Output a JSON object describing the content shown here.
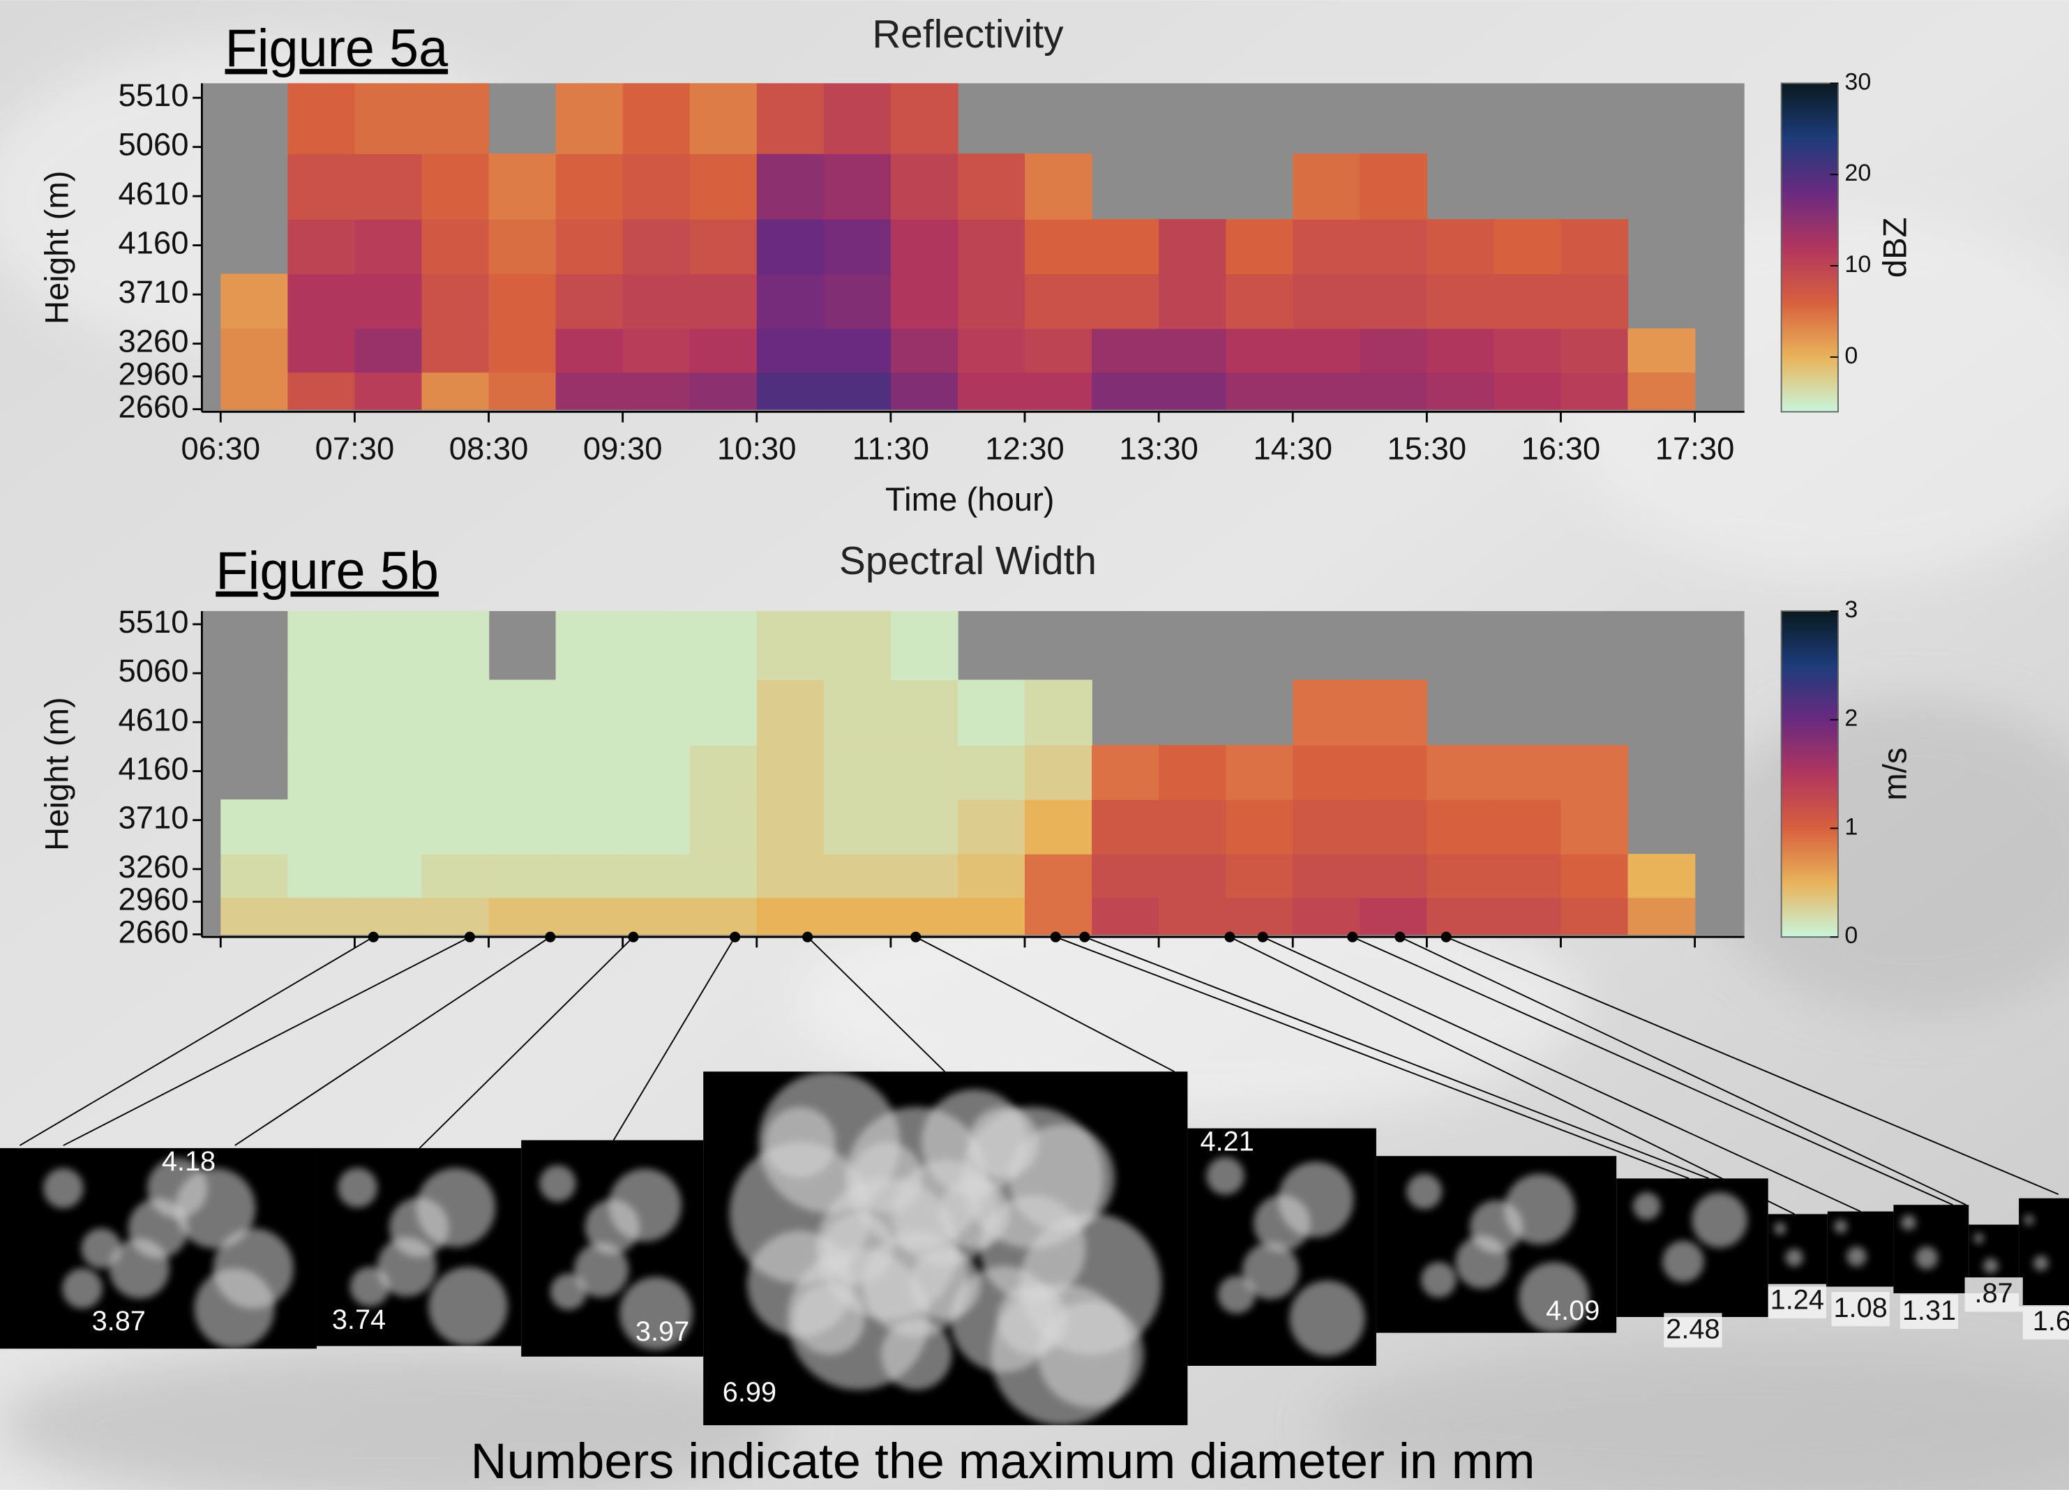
{
  "slide": {
    "figure_labels": [
      "Figure 5a",
      "Figure 5b"
    ],
    "caption": "Numbers indicate the maximum diameter in mm",
    "diameters": [
      "3.87",
      "4.18",
      "3.74",
      "3.97",
      "6.99",
      "4.21",
      "4.09",
      "2.48",
      "1.24",
      "1.08",
      "1.31",
      ".87",
      "1.6"
    ]
  },
  "chart_data": [
    {
      "type": "heatmap",
      "title": "Reflectivity",
      "xlabel": "Time (hour)",
      "ylabel": "Height (m)",
      "colorbar_label": "dBZ",
      "xlim": [
        6.36,
        17.87
      ],
      "ylim": [
        2636,
        5643
      ],
      "xticks": [
        {
          "value": 6.5,
          "label": "06:30"
        },
        {
          "value": 7.5,
          "label": "07:30"
        },
        {
          "value": 8.5,
          "label": "08:30"
        },
        {
          "value": 9.5,
          "label": "09:30"
        },
        {
          "value": 10.5,
          "label": "10:30"
        },
        {
          "value": 11.5,
          "label": "11:30"
        },
        {
          "value": 12.5,
          "label": "12:30"
        },
        {
          "value": 13.5,
          "label": "13:30"
        },
        {
          "value": 14.5,
          "label": "14:30"
        },
        {
          "value": 15.5,
          "label": "15:30"
        },
        {
          "value": 16.5,
          "label": "16:30"
        },
        {
          "value": 17.5,
          "label": "17:30"
        }
      ],
      "yticks": [
        2660,
        2960,
        3260,
        3710,
        4160,
        4610,
        5060,
        5510
      ],
      "xbins": [
        6.5,
        7,
        7.5,
        8,
        8.5,
        9,
        9.5,
        10,
        10.5,
        11,
        11.5,
        12,
        12.5,
        13,
        13.5,
        14,
        14.5,
        15,
        15.5,
        16,
        16.5,
        17,
        17.5
      ],
      "ybins": [
        2660,
        3000,
        3400,
        3900,
        4400,
        5000,
        5643
      ],
      "z": [
        [
          3,
          8,
          11,
          3,
          5,
          14,
          14,
          15,
          20,
          20,
          16,
          12,
          12,
          16,
          16,
          14,
          14,
          14,
          13,
          12,
          11,
          4
        ],
        [
          3,
          12,
          14,
          8,
          6,
          12,
          11,
          12,
          18,
          18,
          14,
          11,
          10,
          14,
          14,
          12,
          12,
          13,
          12,
          11,
          10,
          2
        ],
        [
          2,
          12,
          12,
          8,
          6,
          9,
          10,
          10,
          17,
          16,
          12,
          10,
          8,
          8,
          10,
          8,
          9,
          9,
          8,
          8,
          8,
          null
        ],
        [
          null,
          10,
          11,
          7,
          5,
          7,
          9,
          8,
          18,
          17,
          12,
          10,
          6,
          6,
          10,
          6,
          8,
          8,
          7,
          6,
          7,
          null
        ],
        [
          null,
          8,
          8,
          6,
          4,
          6,
          7,
          6,
          15,
          14,
          10,
          8,
          4,
          null,
          null,
          null,
          5,
          6,
          null,
          null,
          null,
          null
        ],
        [
          null,
          6,
          5,
          5,
          null,
          4,
          6,
          4,
          8,
          10,
          8,
          null,
          null,
          null,
          null,
          null,
          null,
          null,
          null,
          null,
          null,
          null
        ]
      ],
      "clim": [
        -6,
        30
      ],
      "cticks": [
        0,
        10,
        20,
        30
      ],
      "colormap": [
        "#c8f5dc",
        "#e9b35a",
        "#d7603e",
        "#b0365e",
        "#6a2a80",
        "#1c3c7a",
        "#0a1a20"
      ],
      "missing_color": "#8c8c8c"
    },
    {
      "type": "heatmap",
      "title": "Spectral Width",
      "ylabel": "Height (m)",
      "colorbar_label": "m/s",
      "xlim": [
        6.36,
        17.87
      ],
      "ylim": [
        2636,
        5631
      ],
      "xticks": [
        6.5,
        7.5,
        8.5,
        9.5,
        10.5,
        11.5,
        12.5,
        13.5,
        14.5,
        15.5,
        16.5,
        17.5
      ],
      "yticks": [
        2660,
        2960,
        3260,
        3710,
        4160,
        4610,
        5060,
        5510
      ],
      "xbins": [
        6.5,
        7,
        7.5,
        8,
        8.5,
        9,
        9.5,
        10,
        10.5,
        11,
        11.5,
        12,
        12.5,
        13,
        13.5,
        14,
        14.5,
        15,
        15.5,
        16,
        16.5,
        17,
        17.5
      ],
      "ybins": [
        2660,
        3000,
        3400,
        3900,
        4400,
        5000,
        5631
      ],
      "z": [
        [
          0.3,
          0.3,
          0.3,
          0.3,
          0.4,
          0.4,
          0.4,
          0.4,
          0.5,
          0.5,
          0.5,
          0.5,
          0.9,
          1.3,
          1.2,
          1.2,
          1.3,
          1.4,
          1.2,
          1.2,
          1.1,
          0.7
        ],
        [
          0.2,
          0.1,
          0.1,
          0.2,
          0.2,
          0.2,
          0.2,
          0.2,
          0.3,
          0.3,
          0.3,
          0.4,
          0.9,
          1.2,
          1.2,
          1.1,
          1.2,
          1.2,
          1.1,
          1.1,
          1.0,
          0.5
        ],
        [
          0.1,
          0.1,
          0.1,
          0.1,
          0.1,
          0.1,
          0.1,
          0.2,
          0.3,
          0.2,
          0.2,
          0.3,
          0.5,
          1.1,
          1.1,
          1.0,
          1.1,
          1.1,
          1.0,
          1.0,
          0.9,
          null
        ],
        [
          null,
          0.1,
          0.1,
          0.1,
          0.1,
          0.1,
          0.1,
          0.2,
          0.3,
          0.2,
          0.2,
          0.2,
          0.3,
          0.9,
          1.0,
          0.9,
          1.0,
          1.0,
          0.9,
          0.9,
          0.9,
          null
        ],
        [
          null,
          0.1,
          0.1,
          0.1,
          0.1,
          0.1,
          0.1,
          0.1,
          0.3,
          0.2,
          0.2,
          0.1,
          0.2,
          null,
          null,
          null,
          0.9,
          0.9,
          null,
          null,
          null,
          null
        ],
        [
          null,
          0.1,
          0.1,
          0.1,
          null,
          0.1,
          0.1,
          0.1,
          0.2,
          0.2,
          0.1,
          null,
          null,
          null,
          null,
          null,
          null,
          null,
          null,
          null,
          null,
          null
        ]
      ],
      "clim": [
        0,
        3
      ],
      "cticks": [
        0,
        1,
        2,
        3
      ],
      "colormap": [
        "#c8f5dc",
        "#e9b35a",
        "#d7603e",
        "#b0365e",
        "#6a2a80",
        "#1c3c7a",
        "#0a1a20"
      ],
      "missing_color": "#8c8c8c"
    }
  ]
}
